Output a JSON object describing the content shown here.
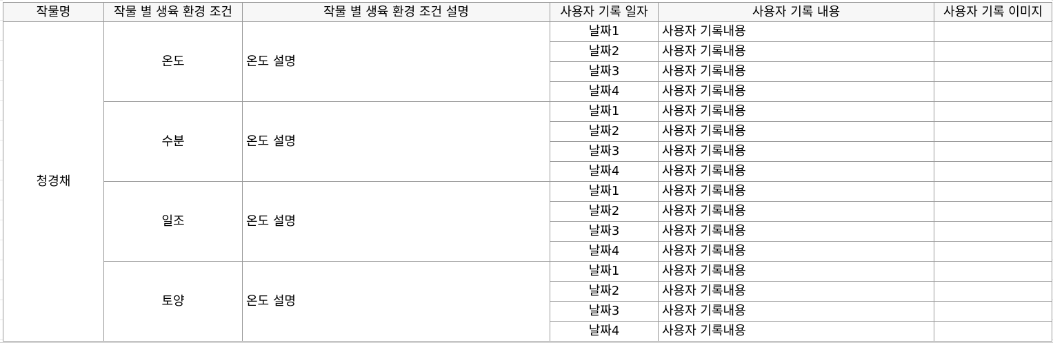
{
  "headers": [
    "작물명",
    "작물 별 생육 환경 조건",
    "작물 별 생육 환경 조건 설명",
    "사용자 기록 일자",
    "사용자 기록 내용",
    "사용자 기록 이미지"
  ],
  "crop_name": "청경채",
  "groups": [
    {
      "condition": "온도",
      "description": "온도 설명",
      "records": [
        {
          "date": "날짜1",
          "content": "사용자 기록내용",
          "image": ""
        },
        {
          "date": "날짜2",
          "content": "사용자 기록내용",
          "image": ""
        },
        {
          "date": "날짜3",
          "content": "사용자 기록내용",
          "image": ""
        },
        {
          "date": "날짜4",
          "content": "사용자 기록내용",
          "image": ""
        }
      ]
    },
    {
      "condition": "수분",
      "description": "온도 설명",
      "records": [
        {
          "date": "날짜1",
          "content": "사용자 기록내용",
          "image": ""
        },
        {
          "date": "날짜2",
          "content": "사용자 기록내용",
          "image": ""
        },
        {
          "date": "날짜3",
          "content": "사용자 기록내용",
          "image": ""
        },
        {
          "date": "날짜4",
          "content": "사용자 기록내용",
          "image": ""
        }
      ]
    },
    {
      "condition": "일조",
      "description": "온도 설명",
      "records": [
        {
          "date": "날짜1",
          "content": "사용자 기록내용",
          "image": ""
        },
        {
          "date": "날짜2",
          "content": "사용자 기록내용",
          "image": ""
        },
        {
          "date": "날짜3",
          "content": "사용자 기록내용",
          "image": ""
        },
        {
          "date": "날짜4",
          "content": "사용자 기록내용",
          "image": ""
        }
      ]
    },
    {
      "condition": "토양",
      "description": "온도 설명",
      "records": [
        {
          "date": "날짜1",
          "content": "사용자 기록내용",
          "image": ""
        },
        {
          "date": "날짜2",
          "content": "사용자 기록내용",
          "image": ""
        },
        {
          "date": "날짜3",
          "content": "사용자 기록내용",
          "image": ""
        },
        {
          "date": "날짜4",
          "content": "사용자 기록내용",
          "image": ""
        }
      ]
    }
  ]
}
